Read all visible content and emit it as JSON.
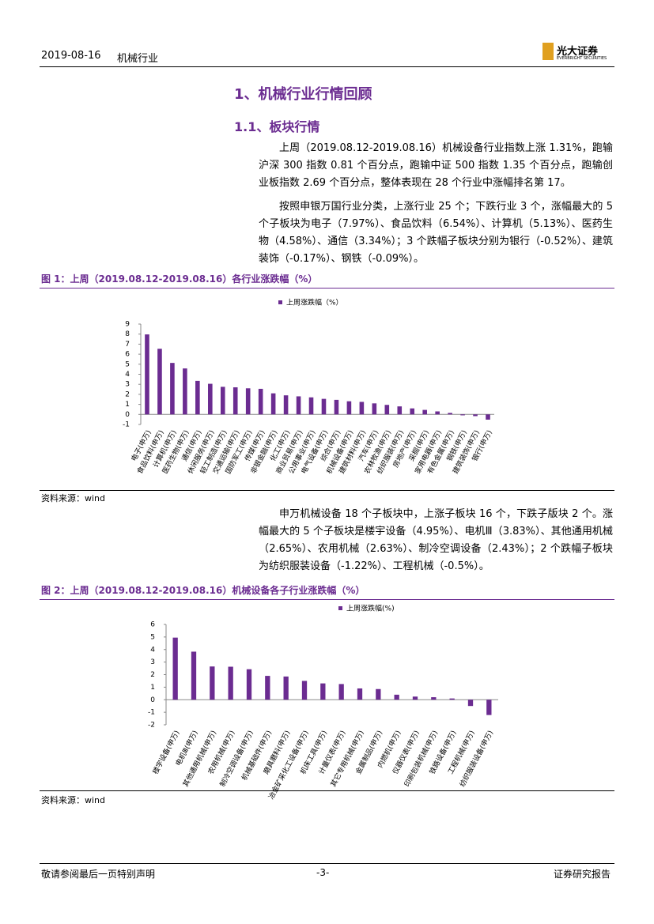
{
  "header": {
    "date": "2019-08-16",
    "industry": "机械行业",
    "logo_cn": "光大证券",
    "logo_en": "EVERBRIGHT SECURITIES"
  },
  "heading": "1、机械行业行情回顾",
  "subheading": "1.1、板块行情",
  "paragraphs": [
    "上周（2019.08.12-2019.08.16）机械设备行业指数上涨 1.31%，跑输沪深 300 指数 0.81 个百分点，跑输中证 500 指数 1.35 个百分点，跑输创业板指数 2.69 个百分点，整体表现在 28 个行业中涨幅排名第 17。",
    "按照申银万国行业分类，上涨行业 25 个；下跌行业 3 个，涨幅最大的 5 个子板块为电子（7.97%）、食品饮料（6.54%）、计算机（5.13%）、医药生物（4.58%）、通信（3.34%）；3 个跌幅子板块分别为银行（-0.52%）、建筑装饰（-0.17%）、钢铁（-0.09%）。",
    "申万机械设备 18 个子板块中，上涨子板块 16 个，下跌子版块 2 个。涨幅最大的 5 个子板块是楼宇设备（4.95%）、电机Ⅲ（3.83%）、其他通用机械（2.65%）、农用机械（2.63%）、制冷空调设备（2.43%）；2 个跌幅子板块为纺织服装设备（-1.22%）、工程机械（-0.5%）。"
  ],
  "chart_data": [
    {
      "type": "bar",
      "title": "图 1：上周（2019.08.12-2019.08.16）各行业涨跌幅（%）",
      "source": "资料来源：wind",
      "categories": [
        "电子(申万)",
        "食品饮料(申万)",
        "计算机(申万)",
        "医药生物(申万)",
        "通信(申万)",
        "休闲服务(申万)",
        "轻工制造(申万)",
        "交通运输(申万)",
        "国防军工(申万)",
        "传媒(申万)",
        "非银金融(申万)",
        "化工(申万)",
        "商业贸易(申万)",
        "公用事业(申万)",
        "电气设备(申万)",
        "综合(申万)",
        "机械设备(申万)",
        "建筑材料(申万)",
        "汽车(申万)",
        "农林牧渔(申万)",
        "纺织服装(申万)",
        "房地产(申万)",
        "采掘(申万)",
        "家用电器(申万)",
        "有色金属(申万)",
        "钢铁(申万)",
        "建筑装饰(申万)",
        "银行(申万)"
      ],
      "series": [
        {
          "name": "上周涨跌幅（%）",
          "color": "#6b2c91",
          "values": [
            7.97,
            6.54,
            5.13,
            4.58,
            3.34,
            3.05,
            2.75,
            2.7,
            2.6,
            2.55,
            2.1,
            1.9,
            1.8,
            1.7,
            1.55,
            1.45,
            1.31,
            1.25,
            1.1,
            0.95,
            0.8,
            0.6,
            0.45,
            0.3,
            0.15,
            -0.09,
            -0.17,
            -0.52
          ]
        }
      ],
      "ylim": [
        -1,
        9
      ],
      "yticks": [
        -1,
        0,
        1,
        2,
        3,
        4,
        5,
        6,
        7,
        8,
        9
      ]
    },
    {
      "type": "bar",
      "title": "图 2：上周（2019.08.12-2019.08.16）机械设备各子行业涨跌幅（%）",
      "source": "资料来源：wind",
      "categories": [
        "楼宇设备(申万)",
        "电机Ⅲ(申万)",
        "其他通用机械(申万)",
        "农用机械(申万)",
        "制冷空调设备(申万)",
        "机械基础件(申万)",
        "磨具磨料(申万)",
        "冶金矿采化工设备(申万)",
        "机床工具(申万)",
        "计量仪表(申万)",
        "其它专用机械(申万)",
        "金属制品(申万)",
        "内燃机(申万)",
        "仪器仪表(申万)",
        "印刷包装机械(申万)",
        "铁路设备(申万)",
        "工程机械(申万)",
        "纺织服装设备(申万)"
      ],
      "series": [
        {
          "name": "上周涨跌幅(%)",
          "color": "#6b2c91",
          "values": [
            4.95,
            3.83,
            2.65,
            2.63,
            2.43,
            1.9,
            1.85,
            1.5,
            1.3,
            1.25,
            0.9,
            0.85,
            0.4,
            0.25,
            0.2,
            0.1,
            -0.5,
            -1.22
          ]
        }
      ],
      "ylim": [
        -2,
        6
      ],
      "yticks": [
        -2,
        -1,
        0,
        1,
        2,
        3,
        4,
        5,
        6
      ]
    }
  ],
  "footer": {
    "left": "敬请参阅最后一页特别声明",
    "page": "-3-",
    "right": "证券研究报告"
  }
}
